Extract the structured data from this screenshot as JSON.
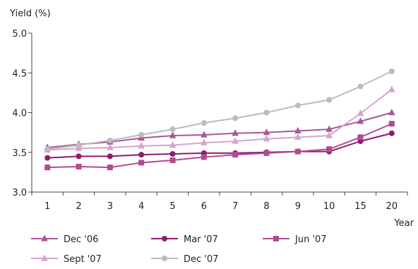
{
  "chart_data": {
    "type": "line",
    "ylabel": "Yield (%)",
    "xlabel": "Year",
    "categories": [
      "1",
      "2",
      "3",
      "4",
      "5",
      "6",
      "7",
      "8",
      "9",
      "10",
      "15",
      "20"
    ],
    "ylim": [
      3.0,
      5.0
    ],
    "yticks": [
      "3.0",
      "3.5",
      "4.0",
      "4.5",
      "5.0"
    ],
    "grid": false,
    "legend_position": "bottom",
    "series": [
      {
        "name": "Dec '06",
        "color": "#a8579a",
        "marker": "triangle",
        "values": [
          3.56,
          3.6,
          3.63,
          3.68,
          3.71,
          3.72,
          3.74,
          3.75,
          3.77,
          3.79,
          3.89,
          4.0
        ]
      },
      {
        "name": "Mar '07",
        "color": "#8e1b6e",
        "marker": "circle",
        "values": [
          3.43,
          3.45,
          3.45,
          3.47,
          3.48,
          3.49,
          3.49,
          3.5,
          3.51,
          3.51,
          3.64,
          3.74
        ]
      },
      {
        "name": "Jun '07",
        "color": "#b24a93",
        "marker": "square",
        "values": [
          3.31,
          3.32,
          3.31,
          3.37,
          3.4,
          3.44,
          3.47,
          3.49,
          3.51,
          3.54,
          3.69,
          3.86
        ]
      },
      {
        "name": "Sept '07",
        "color": "#d6a3cc",
        "marker": "triangle",
        "values": [
          3.53,
          3.55,
          3.56,
          3.58,
          3.59,
          3.62,
          3.64,
          3.67,
          3.69,
          3.71,
          3.99,
          4.29
        ]
      },
      {
        "name": "Dec '07",
        "color": "#bcbcbc",
        "marker": "circle",
        "values": [
          3.54,
          3.59,
          3.65,
          3.72,
          3.79,
          3.87,
          3.93,
          4.0,
          4.09,
          4.16,
          4.33,
          4.52
        ]
      }
    ]
  }
}
